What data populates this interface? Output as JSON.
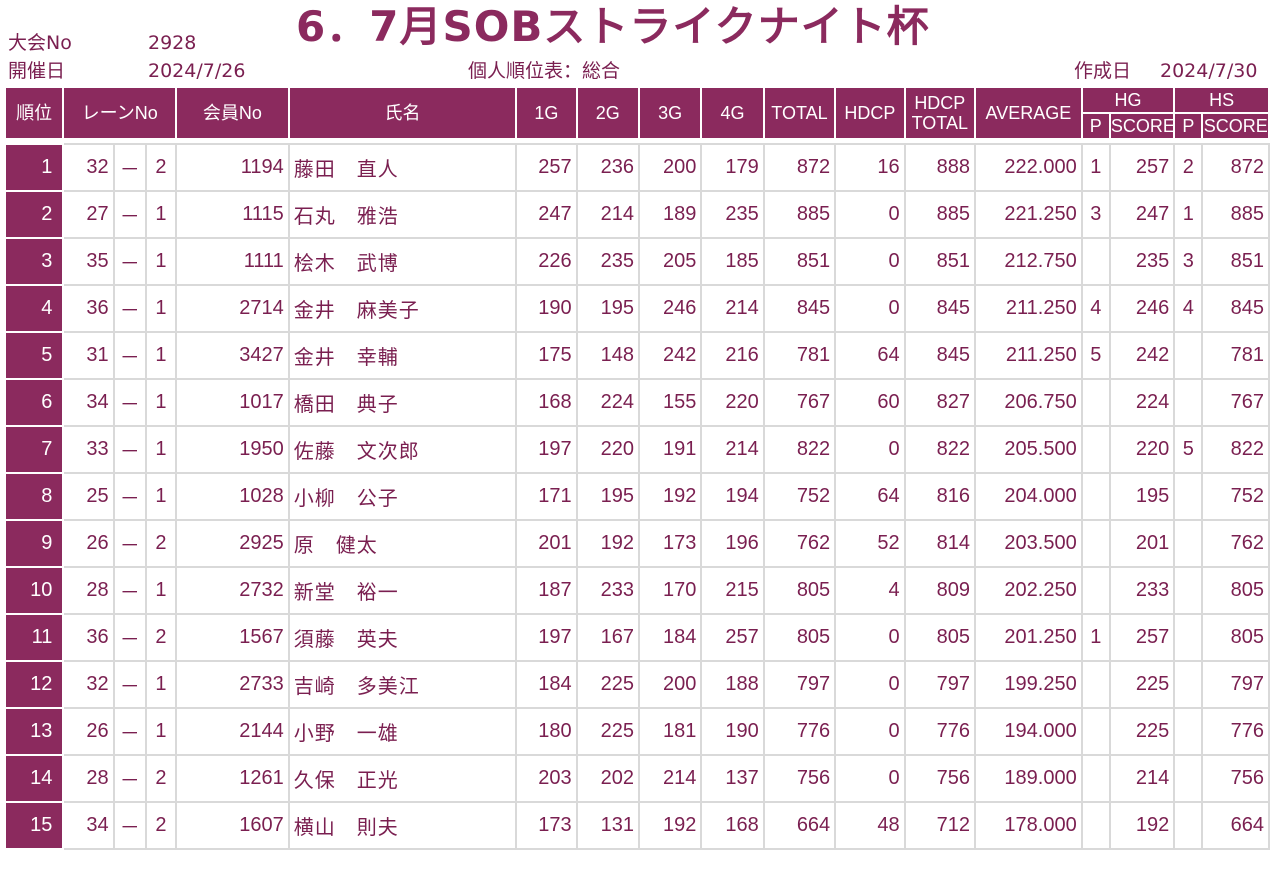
{
  "header": {
    "title": "6．7月SOBストライクナイト杯",
    "tournament_no_label": "大会No",
    "tournament_no": "2928",
    "date_label": "開催日",
    "date": "2024/7/26",
    "report_title": "個人順位表：総合",
    "created_label": "作成日",
    "created_date": "2024/7/30"
  },
  "columns": {
    "rank": "順位",
    "lane": "レーンNo",
    "member": "会員No",
    "name": "氏名",
    "g1": "1G",
    "g2": "2G",
    "g3": "3G",
    "g4": "4G",
    "total": "TOTAL",
    "hdcp": "HDCP",
    "hdcp_total_1": "HDCP",
    "hdcp_total_2": "TOTAL",
    "average": "AVERAGE",
    "hg": "HG",
    "hs": "HS",
    "p": "P",
    "score": "SCORE"
  },
  "rows": [
    {
      "rank": "1",
      "lane": "32",
      "dash": "－",
      "lane_sub": "2",
      "member": "1194",
      "name": "藤田　直人",
      "g1": "257",
      "g2": "236",
      "g3": "200",
      "g4": "179",
      "total": "872",
      "hdcp": "16",
      "hdcp_total": "888",
      "average": "222.000",
      "hg_p": "1",
      "hg_score": "257",
      "hs_p": "2",
      "hs_score": "872"
    },
    {
      "rank": "2",
      "lane": "27",
      "dash": "－",
      "lane_sub": "1",
      "member": "1115",
      "name": "石丸　雅浩",
      "g1": "247",
      "g2": "214",
      "g3": "189",
      "g4": "235",
      "total": "885",
      "hdcp": "0",
      "hdcp_total": "885",
      "average": "221.250",
      "hg_p": "3",
      "hg_score": "247",
      "hs_p": "1",
      "hs_score": "885"
    },
    {
      "rank": "3",
      "lane": "35",
      "dash": "－",
      "lane_sub": "1",
      "member": "1111",
      "name": "桧木　武博",
      "g1": "226",
      "g2": "235",
      "g3": "205",
      "g4": "185",
      "total": "851",
      "hdcp": "0",
      "hdcp_total": "851",
      "average": "212.750",
      "hg_p": "",
      "hg_score": "235",
      "hs_p": "3",
      "hs_score": "851"
    },
    {
      "rank": "4",
      "lane": "36",
      "dash": "－",
      "lane_sub": "1",
      "member": "2714",
      "name": "金井　麻美子",
      "g1": "190",
      "g2": "195",
      "g3": "246",
      "g4": "214",
      "total": "845",
      "hdcp": "0",
      "hdcp_total": "845",
      "average": "211.250",
      "hg_p": "4",
      "hg_score": "246",
      "hs_p": "4",
      "hs_score": "845"
    },
    {
      "rank": "5",
      "lane": "31",
      "dash": "－",
      "lane_sub": "1",
      "member": "3427",
      "name": "金井　幸輔",
      "g1": "175",
      "g2": "148",
      "g3": "242",
      "g4": "216",
      "total": "781",
      "hdcp": "64",
      "hdcp_total": "845",
      "average": "211.250",
      "hg_p": "5",
      "hg_score": "242",
      "hs_p": "",
      "hs_score": "781"
    },
    {
      "rank": "6",
      "lane": "34",
      "dash": "－",
      "lane_sub": "1",
      "member": "1017",
      "name": "橋田　典子",
      "g1": "168",
      "g2": "224",
      "g3": "155",
      "g4": "220",
      "total": "767",
      "hdcp": "60",
      "hdcp_total": "827",
      "average": "206.750",
      "hg_p": "",
      "hg_score": "224",
      "hs_p": "",
      "hs_score": "767"
    },
    {
      "rank": "7",
      "lane": "33",
      "dash": "－",
      "lane_sub": "1",
      "member": "1950",
      "name": "佐藤　文次郎",
      "g1": "197",
      "g2": "220",
      "g3": "191",
      "g4": "214",
      "total": "822",
      "hdcp": "0",
      "hdcp_total": "822",
      "average": "205.500",
      "hg_p": "",
      "hg_score": "220",
      "hs_p": "5",
      "hs_score": "822"
    },
    {
      "rank": "8",
      "lane": "25",
      "dash": "－",
      "lane_sub": "1",
      "member": "1028",
      "name": "小柳　公子",
      "g1": "171",
      "g2": "195",
      "g3": "192",
      "g4": "194",
      "total": "752",
      "hdcp": "64",
      "hdcp_total": "816",
      "average": "204.000",
      "hg_p": "",
      "hg_score": "195",
      "hs_p": "",
      "hs_score": "752"
    },
    {
      "rank": "9",
      "lane": "26",
      "dash": "－",
      "lane_sub": "2",
      "member": "2925",
      "name": "原　健太",
      "g1": "201",
      "g2": "192",
      "g3": "173",
      "g4": "196",
      "total": "762",
      "hdcp": "52",
      "hdcp_total": "814",
      "average": "203.500",
      "hg_p": "",
      "hg_score": "201",
      "hs_p": "",
      "hs_score": "762"
    },
    {
      "rank": "10",
      "lane": "28",
      "dash": "－",
      "lane_sub": "1",
      "member": "2732",
      "name": "新堂　裕一",
      "g1": "187",
      "g2": "233",
      "g3": "170",
      "g4": "215",
      "total": "805",
      "hdcp": "4",
      "hdcp_total": "809",
      "average": "202.250",
      "hg_p": "",
      "hg_score": "233",
      "hs_p": "",
      "hs_score": "805"
    },
    {
      "rank": "11",
      "lane": "36",
      "dash": "－",
      "lane_sub": "2",
      "member": "1567",
      "name": "須藤　英夫",
      "g1": "197",
      "g2": "167",
      "g3": "184",
      "g4": "257",
      "total": "805",
      "hdcp": "0",
      "hdcp_total": "805",
      "average": "201.250",
      "hg_p": "1",
      "hg_score": "257",
      "hs_p": "",
      "hs_score": "805"
    },
    {
      "rank": "12",
      "lane": "32",
      "dash": "－",
      "lane_sub": "1",
      "member": "2733",
      "name": "吉崎　多美江",
      "g1": "184",
      "g2": "225",
      "g3": "200",
      "g4": "188",
      "total": "797",
      "hdcp": "0",
      "hdcp_total": "797",
      "average": "199.250",
      "hg_p": "",
      "hg_score": "225",
      "hs_p": "",
      "hs_score": "797"
    },
    {
      "rank": "13",
      "lane": "26",
      "dash": "－",
      "lane_sub": "1",
      "member": "2144",
      "name": "小野　一雄",
      "g1": "180",
      "g2": "225",
      "g3": "181",
      "g4": "190",
      "total": "776",
      "hdcp": "0",
      "hdcp_total": "776",
      "average": "194.000",
      "hg_p": "",
      "hg_score": "225",
      "hs_p": "",
      "hs_score": "776"
    },
    {
      "rank": "14",
      "lane": "28",
      "dash": "－",
      "lane_sub": "2",
      "member": "1261",
      "name": "久保　正光",
      "g1": "203",
      "g2": "202",
      "g3": "214",
      "g4": "137",
      "total": "756",
      "hdcp": "0",
      "hdcp_total": "756",
      "average": "189.000",
      "hg_p": "",
      "hg_score": "214",
      "hs_p": "",
      "hs_score": "756"
    },
    {
      "rank": "15",
      "lane": "34",
      "dash": "－",
      "lane_sub": "2",
      "member": "1607",
      "name": "横山　則夫",
      "g1": "173",
      "g2": "131",
      "g3": "192",
      "g4": "168",
      "total": "664",
      "hdcp": "48",
      "hdcp_total": "712",
      "average": "178.000",
      "hg_p": "",
      "hg_score": "192",
      "hs_p": "",
      "hs_score": "664"
    }
  ],
  "colors": {
    "accent": "#8b2a5e",
    "text": "#7a1f50",
    "grid": "#d9d9d9"
  }
}
